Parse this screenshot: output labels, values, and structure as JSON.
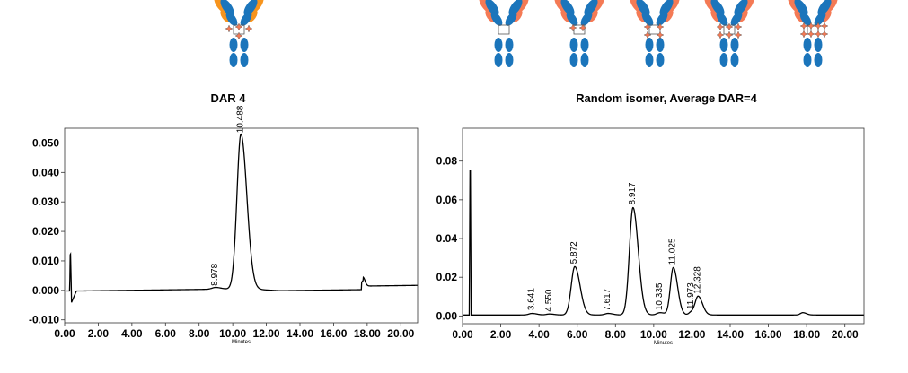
{
  "captions": {
    "left": "DAR 4",
    "right": "Random isomer, Average DAR=4"
  },
  "colors": {
    "heavy_chain": "#1b75bb",
    "light_chain_left": "#f7941d",
    "light_chain_right": "#f47a55",
    "payload": "#f47a55",
    "trace": "#000000"
  },
  "chart_data": [
    {
      "type": "line",
      "title": "",
      "xlabel": "Minutes",
      "ylabel": "",
      "xlim": [
        0,
        21
      ],
      "ylim": [
        -0.011,
        0.055
      ],
      "x_ticks": [
        "0.00",
        "2.00",
        "4.00",
        "6.00",
        "8.00",
        "10.00",
        "12.00",
        "14.00",
        "16.00",
        "18.00",
        "20.00"
      ],
      "y_ticks": [
        "-0.010",
        "0.000",
        "0.010",
        "0.020",
        "0.030",
        "0.040",
        "0.050"
      ],
      "grid": false,
      "peak_labels": [
        {
          "x": 8.978,
          "y": 0.0006,
          "label": "8.978"
        },
        {
          "x": 10.488,
          "y": 0.0525,
          "label": "10.488"
        }
      ]
    },
    {
      "type": "line",
      "title": "",
      "xlabel": "Minutes",
      "ylabel": "",
      "xlim": [
        0,
        21
      ],
      "ylim": [
        -0.004,
        0.097
      ],
      "x_ticks": [
        "0.00",
        "2.00",
        "4.00",
        "6.00",
        "8.00",
        "10.00",
        "12.00",
        "14.00",
        "16.00",
        "18.00",
        "20.00"
      ],
      "y_ticks": [
        "0.00",
        "0.02",
        "0.04",
        "0.06",
        "0.08"
      ],
      "grid": false,
      "peak_labels": [
        {
          "x": 3.641,
          "y": 0.0015,
          "label": "3.641"
        },
        {
          "x": 4.55,
          "y": 0.0008,
          "label": "4.550"
        },
        {
          "x": 5.872,
          "y": 0.0255,
          "label": "5.872"
        },
        {
          "x": 7.617,
          "y": 0.0012,
          "label": "7.617"
        },
        {
          "x": 8.917,
          "y": 0.056,
          "label": "8.917"
        },
        {
          "x": 10.335,
          "y": 0.0015,
          "label": "10.335"
        },
        {
          "x": 11.025,
          "y": 0.025,
          "label": "11.025"
        },
        {
          "x": 11.973,
          "y": 0.002,
          "label": "11.973"
        },
        {
          "x": 12.328,
          "y": 0.01,
          "label": "12.328"
        }
      ]
    }
  ]
}
